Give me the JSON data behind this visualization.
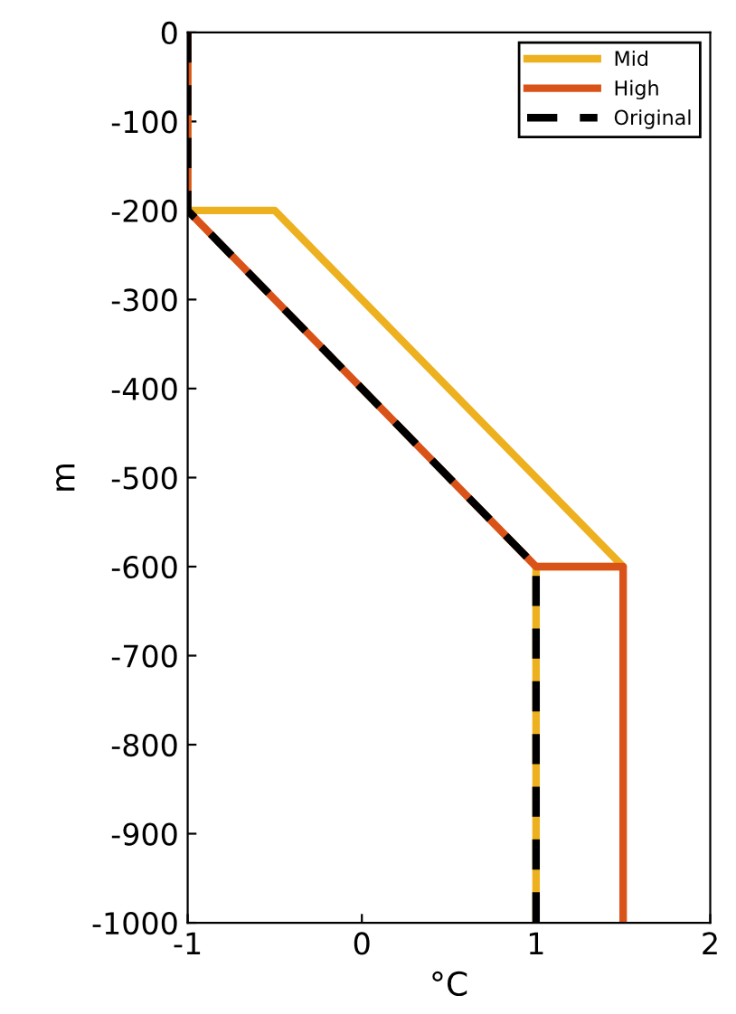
{
  "chart_data": {
    "type": "line",
    "xlabel": "°C",
    "ylabel": "m",
    "xlim": [
      -1,
      2
    ],
    "xticks": [
      -1,
      0,
      1,
      2
    ],
    "ylim": [
      -1000,
      0
    ],
    "yticks": [
      -1000,
      -900,
      -800,
      -700,
      -600,
      -500,
      -400,
      -300,
      -200,
      -100,
      0
    ],
    "grid": false,
    "legend": "top right",
    "series": [
      {
        "name": "Mid",
        "color": "#edb120",
        "x": [
          -1,
          -1,
          -0.5,
          1.5,
          1,
          1
        ],
        "values": [
          0,
          -200,
          -200,
          -600,
          -600,
          -1000
        ],
        "line_style": "solid"
      },
      {
        "name": "High",
        "color": "#d95319",
        "x": [
          -1,
          -1,
          1,
          1.5,
          1.5
        ],
        "values": [
          0,
          -200,
          -600,
          -600,
          -1000
        ],
        "line_style": "solid"
      },
      {
        "name": "Original",
        "color": "#000000",
        "x": [
          -1,
          -1,
          1,
          1
        ],
        "values": [
          0,
          -200,
          -600,
          -1000
        ],
        "line_style": "dashed"
      }
    ]
  }
}
